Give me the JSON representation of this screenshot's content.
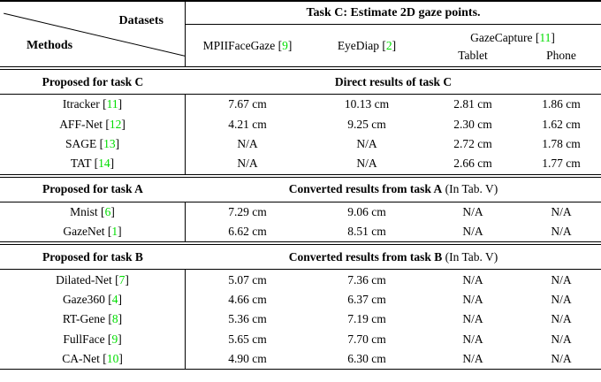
{
  "table": {
    "corner": {
      "datasets_label": "Datasets",
      "methods_label": "Methods"
    },
    "task_header": "Task C: Estimate 2D gaze points.",
    "citation_color": "#00dd00",
    "datasets": [
      {
        "label": "MPIIFaceGaze",
        "cite": "9"
      },
      {
        "label": "EyeDiap",
        "cite": "2"
      },
      {
        "label": "GazeCapture",
        "cite": "11",
        "sub": [
          "Tablet",
          "Phone"
        ]
      }
    ],
    "sections": [
      {
        "left_header": "Proposed for task C",
        "right_header_bold": "Direct results of task C",
        "right_header_note": "",
        "rows": [
          {
            "method": "Itracker",
            "cite": "11",
            "values": [
              "7.67 cm",
              "10.13 cm",
              "2.81 cm",
              "1.86 cm"
            ]
          },
          {
            "method": "AFF-Net",
            "cite": "12",
            "values": [
              "4.21 cm",
              "9.25 cm",
              "2.30 cm",
              "1.62 cm"
            ]
          },
          {
            "method": "SAGE",
            "cite": "13",
            "values": [
              "N/A",
              "N/A",
              "2.72 cm",
              "1.78 cm"
            ]
          },
          {
            "method": "TAT",
            "cite": "14",
            "values": [
              "N/A",
              "N/A",
              "2.66 cm",
              "1.77 cm"
            ]
          }
        ]
      },
      {
        "left_header": "Proposed for task A",
        "right_header_bold": "Converted results from task A",
        "right_header_note": "(In Tab. V)",
        "rows": [
          {
            "method": "Mnist",
            "cite": "6",
            "values": [
              "7.29 cm",
              "9.06 cm",
              "N/A",
              "N/A"
            ]
          },
          {
            "method": "GazeNet",
            "cite": "1",
            "values": [
              "6.62 cm",
              "8.51 cm",
              "N/A",
              "N/A"
            ]
          }
        ]
      },
      {
        "left_header": "Proposed for task B",
        "right_header_bold": "Converted results from task B",
        "right_header_note": "(In Tab. V)",
        "rows": [
          {
            "method": "Dilated-Net",
            "cite": "7",
            "values": [
              "5.07 cm",
              "7.36 cm",
              "N/A",
              "N/A"
            ]
          },
          {
            "method": "Gaze360",
            "cite": "4",
            "values": [
              "4.66 cm",
              "6.37 cm",
              "N/A",
              "N/A"
            ]
          },
          {
            "method": "RT-Gene",
            "cite": "8",
            "values": [
              "5.36 cm",
              "7.19 cm",
              "N/A",
              "N/A"
            ]
          },
          {
            "method": "FullFace",
            "cite": "9",
            "values": [
              "5.65 cm",
              "7.70 cm",
              "N/A",
              "N/A"
            ]
          },
          {
            "method": "CA-Net",
            "cite": "10",
            "values": [
              "4.90 cm",
              "6.30 cm",
              "N/A",
              "N/A"
            ]
          }
        ]
      }
    ]
  }
}
